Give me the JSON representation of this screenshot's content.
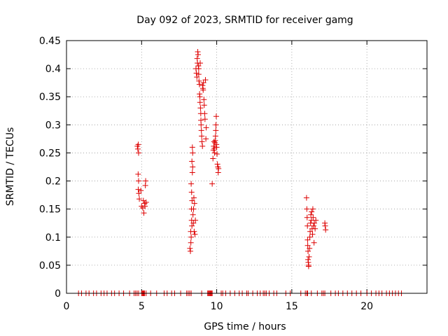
{
  "chart_data": {
    "type": "scatter",
    "title": "Day 092 of 2023, SRMTID for receiver gamg",
    "xlabel": "GPS time / hours",
    "ylabel": "SRMTID / TECUs",
    "xlim": [
      0,
      24
    ],
    "ylim": [
      0,
      0.45
    ],
    "xticks": [
      0,
      5,
      10,
      15,
      20
    ],
    "xtick_labels": [
      "0",
      "5",
      "10",
      "15",
      "20"
    ],
    "yticks": [
      0,
      0.05,
      0.1,
      0.15,
      0.2,
      0.25,
      0.3,
      0.35,
      0.4,
      0.45
    ],
    "ytick_labels": [
      "0",
      "0.05",
      "0.1",
      "0.15",
      "0.2",
      "0.25",
      "0.3",
      "0.35",
      "0.4",
      "0.45"
    ],
    "grid": true,
    "marker": "+",
    "color": "#dd0000",
    "series": [
      {
        "name": "SRMTID",
        "points": [
          [
            4.72,
            0.262
          ],
          [
            4.75,
            0.257
          ],
          [
            4.78,
            0.265
          ],
          [
            4.8,
            0.25
          ],
          [
            4.77,
            0.212
          ],
          [
            4.8,
            0.2
          ],
          [
            4.78,
            0.185
          ],
          [
            4.82,
            0.178
          ],
          [
            4.85,
            0.168
          ],
          [
            4.95,
            0.183
          ],
          [
            5.0,
            0.155
          ],
          [
            5.08,
            0.152
          ],
          [
            5.12,
            0.165
          ],
          [
            5.15,
            0.143
          ],
          [
            5.2,
            0.16
          ],
          [
            5.22,
            0.155
          ],
          [
            5.25,
            0.192
          ],
          [
            5.27,
            0.2
          ],
          [
            5.3,
            0.162
          ],
          [
            8.22,
            0.08
          ],
          [
            8.25,
            0.075
          ],
          [
            8.28,
            0.09
          ],
          [
            8.27,
            0.11
          ],
          [
            8.3,
            0.1
          ],
          [
            8.33,
            0.13
          ],
          [
            8.35,
            0.12
          ],
          [
            8.32,
            0.15
          ],
          [
            8.36,
            0.165
          ],
          [
            8.3,
            0.195
          ],
          [
            8.33,
            0.18
          ],
          [
            8.38,
            0.215
          ],
          [
            8.35,
            0.235
          ],
          [
            8.4,
            0.225
          ],
          [
            8.4,
            0.25
          ],
          [
            8.38,
            0.26
          ],
          [
            8.42,
            0.14
          ],
          [
            8.45,
            0.125
          ],
          [
            8.46,
            0.15
          ],
          [
            8.48,
            0.17
          ],
          [
            8.5,
            0.11
          ],
          [
            8.52,
            0.16
          ],
          [
            8.55,
            0.105
          ],
          [
            8.58,
            0.13
          ],
          [
            8.62,
            0.4
          ],
          [
            8.65,
            0.392
          ],
          [
            8.68,
            0.385
          ],
          [
            8.7,
            0.418
          ],
          [
            8.72,
            0.41
          ],
          [
            8.74,
            0.43
          ],
          [
            8.76,
            0.425
          ],
          [
            8.78,
            0.405
          ],
          [
            8.8,
            0.4
          ],
          [
            8.8,
            0.39
          ],
          [
            8.82,
            0.378
          ],
          [
            8.85,
            0.372
          ],
          [
            8.86,
            0.355
          ],
          [
            8.88,
            0.35
          ],
          [
            8.89,
            0.34
          ],
          [
            8.9,
            0.41
          ],
          [
            8.92,
            0.33
          ],
          [
            8.94,
            0.32
          ],
          [
            8.95,
            0.308
          ],
          [
            8.96,
            0.3
          ],
          [
            8.98,
            0.29
          ],
          [
            9.0,
            0.28
          ],
          [
            9.02,
            0.27
          ],
          [
            9.05,
            0.262
          ],
          [
            9.06,
            0.37
          ],
          [
            9.08,
            0.365
          ],
          [
            9.1,
            0.362
          ],
          [
            9.12,
            0.375
          ],
          [
            9.15,
            0.345
          ],
          [
            9.17,
            0.335
          ],
          [
            9.2,
            0.32
          ],
          [
            9.22,
            0.31
          ],
          [
            9.25,
            0.38
          ],
          [
            9.28,
            0.275
          ],
          [
            9.3,
            0.295
          ],
          [
            9.7,
            0.195
          ],
          [
            9.75,
            0.24
          ],
          [
            9.78,
            0.255
          ],
          [
            9.8,
            0.262
          ],
          [
            9.82,
            0.27
          ],
          [
            9.84,
            0.258
          ],
          [
            9.86,
            0.25
          ],
          [
            9.88,
            0.268
          ],
          [
            9.9,
            0.272
          ],
          [
            9.92,
            0.28
          ],
          [
            9.94,
            0.29
          ],
          [
            9.95,
            0.3
          ],
          [
            9.97,
            0.315
          ],
          [
            9.98,
            0.265
          ],
          [
            10.0,
            0.26
          ],
          [
            10.02,
            0.248
          ],
          [
            10.05,
            0.23
          ],
          [
            10.08,
            0.225
          ],
          [
            10.1,
            0.215
          ],
          [
            10.12,
            0.222
          ],
          [
            15.98,
            0.17
          ],
          [
            16.0,
            0.15
          ],
          [
            16.02,
            0.135
          ],
          [
            16.04,
            0.12
          ],
          [
            16.05,
            0.095
          ],
          [
            16.06,
            0.085
          ],
          [
            16.08,
            0.075
          ],
          [
            16.08,
            0.06
          ],
          [
            16.1,
            0.055
          ],
          [
            16.12,
            0.05
          ],
          [
            16.12,
            0.048
          ],
          [
            16.15,
            0.065
          ],
          [
            16.18,
            0.08
          ],
          [
            16.2,
            0.1
          ],
          [
            16.22,
            0.11
          ],
          [
            16.25,
            0.125
          ],
          [
            16.27,
            0.14
          ],
          [
            16.3,
            0.13
          ],
          [
            16.32,
            0.145
          ],
          [
            16.35,
            0.115
          ],
          [
            16.38,
            0.105
          ],
          [
            16.4,
            0.15
          ],
          [
            16.42,
            0.135
          ],
          [
            16.45,
            0.12
          ],
          [
            16.48,
            0.09
          ],
          [
            16.5,
            0.125
          ],
          [
            16.55,
            0.115
          ],
          [
            16.6,
            0.13
          ],
          [
            17.2,
            0.125
          ],
          [
            17.22,
            0.12
          ],
          [
            17.25,
            0.113
          ],
          [
            0.8,
            0
          ],
          [
            1.0,
            0
          ],
          [
            1.3,
            0
          ],
          [
            1.5,
            0
          ],
          [
            1.8,
            0
          ],
          [
            2.0,
            0
          ],
          [
            2.3,
            0
          ],
          [
            2.5,
            0
          ],
          [
            2.7,
            0
          ],
          [
            3.0,
            0
          ],
          [
            3.2,
            0
          ],
          [
            3.5,
            0
          ],
          [
            3.8,
            0
          ],
          [
            4.2,
            0
          ],
          [
            4.5,
            0
          ],
          [
            4.6,
            0
          ],
          [
            4.7,
            0
          ],
          [
            4.8,
            0
          ],
          [
            5.0,
            0
          ],
          [
            5.05,
            0
          ],
          [
            5.1,
            0
          ],
          [
            5.15,
            0
          ],
          [
            5.2,
            0
          ],
          [
            5.3,
            0
          ],
          [
            5.6,
            0
          ],
          [
            6.0,
            0
          ],
          [
            6.5,
            0
          ],
          [
            6.7,
            0
          ],
          [
            7.0,
            0
          ],
          [
            7.2,
            0
          ],
          [
            7.6,
            0
          ],
          [
            8.0,
            0
          ],
          [
            8.1,
            0
          ],
          [
            8.2,
            0
          ],
          [
            8.3,
            0
          ],
          [
            9.0,
            0
          ],
          [
            9.4,
            0
          ],
          [
            9.45,
            0
          ],
          [
            9.5,
            0
          ],
          [
            9.55,
            0
          ],
          [
            9.6,
            0
          ],
          [
            9.65,
            0
          ],
          [
            9.7,
            0
          ],
          [
            10.3,
            0
          ],
          [
            10.4,
            0
          ],
          [
            10.6,
            0
          ],
          [
            10.9,
            0
          ],
          [
            11.2,
            0
          ],
          [
            11.5,
            0
          ],
          [
            11.7,
            0
          ],
          [
            12.0,
            0
          ],
          [
            12.1,
            0
          ],
          [
            12.4,
            0
          ],
          [
            12.7,
            0
          ],
          [
            12.9,
            0
          ],
          [
            13.1,
            0
          ],
          [
            13.2,
            0
          ],
          [
            13.3,
            0
          ],
          [
            13.5,
            0
          ],
          [
            13.8,
            0
          ],
          [
            14.0,
            0
          ],
          [
            14.6,
            0
          ],
          [
            14.9,
            0
          ],
          [
            15.6,
            0
          ],
          [
            15.9,
            0
          ],
          [
            16.0,
            0
          ],
          [
            16.05,
            0
          ],
          [
            16.3,
            0
          ],
          [
            16.7,
            0
          ],
          [
            17.0,
            0
          ],
          [
            17.1,
            0
          ],
          [
            17.2,
            0
          ],
          [
            17.6,
            0
          ],
          [
            17.9,
            0
          ],
          [
            18.1,
            0
          ],
          [
            18.4,
            0
          ],
          [
            18.7,
            0
          ],
          [
            19.0,
            0
          ],
          [
            19.3,
            0
          ],
          [
            19.6,
            0
          ],
          [
            20.0,
            0
          ],
          [
            20.3,
            0
          ],
          [
            20.6,
            0
          ],
          [
            20.8,
            0
          ],
          [
            21.0,
            0
          ],
          [
            21.3,
            0
          ],
          [
            21.5,
            0
          ],
          [
            21.7,
            0
          ],
          [
            21.9,
            0
          ],
          [
            22.1,
            0
          ],
          [
            22.3,
            0
          ]
        ]
      }
    ]
  }
}
